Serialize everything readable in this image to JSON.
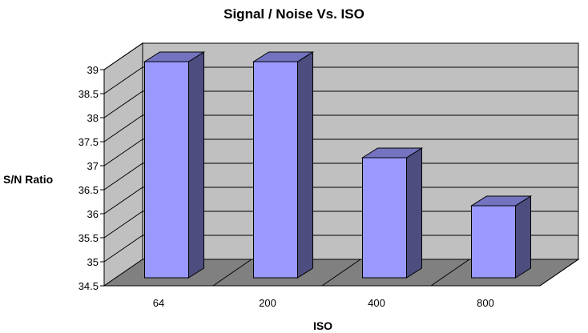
{
  "chart_data": {
    "type": "bar",
    "title": "Signal / Noise Vs. ISO",
    "xlabel": "ISO",
    "ylabel": "S/N Ratio",
    "categories": [
      "64",
      "200",
      "400",
      "800"
    ],
    "values": [
      39,
      39,
      37,
      36
    ],
    "ylim": [
      34.5,
      39
    ],
    "yticks": [
      "34.5",
      "35",
      "35.5",
      "36",
      "36.5",
      "37",
      "37.5",
      "38",
      "38.5",
      "39"
    ],
    "grid": true,
    "legend": "none",
    "style": "3d-column",
    "colors": {
      "bar_front": "#9999ff",
      "bar_side": "#4d4d80",
      "bar_top": "#7373bf",
      "back_wall": "#c0c0c0",
      "floor": "#808080",
      "gridline": "#000000"
    }
  }
}
